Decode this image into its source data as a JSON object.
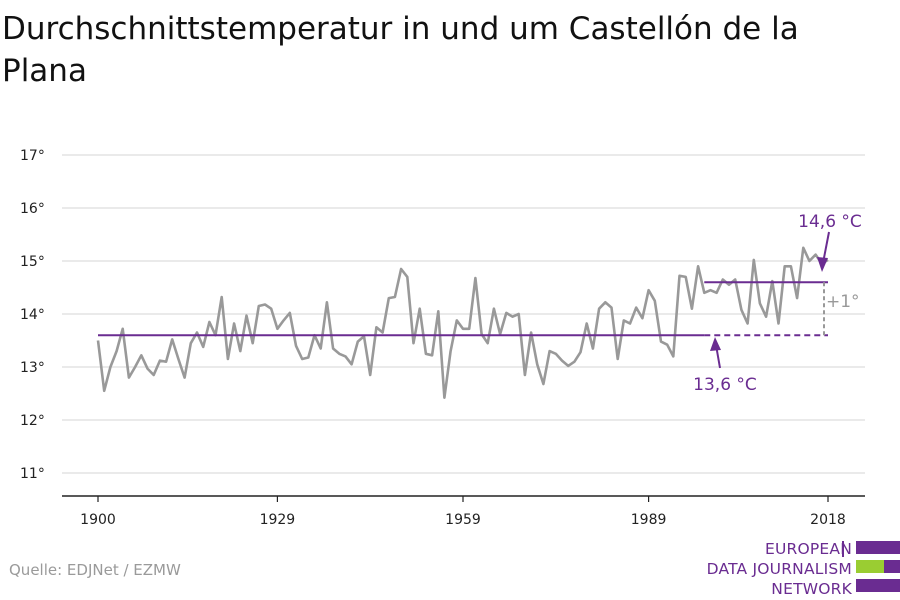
{
  "title": "Durchschnittstemperatur in und um Castellón de la Plana",
  "source": "Quelle: EDJNet / EZMW",
  "logo": {
    "lines": [
      "EUROPEAN",
      "DATA JOURNALISM",
      "NETWORK"
    ],
    "colors": {
      "purple": "#6a2c91",
      "green": "#9acd32"
    }
  },
  "colors": {
    "series": "#999999",
    "average": "#6a2c91",
    "delta": "#999999",
    "grid": "#dddddd"
  },
  "chart_data": {
    "type": "line",
    "title": "Durchschnittstemperatur in und um Castellón de la Plana",
    "xlabel": "",
    "ylabel": "",
    "xlim": [
      1900,
      2018
    ],
    "ylim": [
      11,
      17
    ],
    "yticks": [
      11,
      12,
      13,
      14,
      15,
      16,
      17
    ],
    "ytick_labels": [
      "11°",
      "12°",
      "13°",
      "14°",
      "15°",
      "16°",
      "17°"
    ],
    "xticks": [
      1900,
      1929,
      1959,
      1989,
      2018
    ],
    "xtick_labels": [
      "1900",
      "1929",
      "1959",
      "1989",
      "2018"
    ],
    "grid": true,
    "series": [
      {
        "x": [
          1900,
          1901,
          1902,
          1903,
          1904,
          1905,
          1906,
          1907,
          1908,
          1909,
          1910,
          1911,
          1912,
          1913,
          1914,
          1915,
          1916,
          1917,
          1918,
          1919,
          1920,
          1921,
          1922,
          1923,
          1924,
          1925,
          1926,
          1927,
          1928,
          1929,
          1930,
          1931,
          1932,
          1933,
          1934,
          1935,
          1936,
          1937,
          1938,
          1939,
          1940,
          1941,
          1942,
          1943,
          1944,
          1945,
          1946,
          1947,
          1948,
          1949,
          1950,
          1951,
          1952,
          1953,
          1954,
          1955,
          1956,
          1957,
          1958,
          1959,
          1960,
          1961,
          1962,
          1963,
          1964,
          1965,
          1966,
          1967,
          1968,
          1969,
          1970,
          1971,
          1972,
          1973,
          1974,
          1975,
          1976,
          1977,
          1978,
          1979,
          1980,
          1981,
          1982,
          1983,
          1984,
          1985,
          1986,
          1987,
          1988,
          1989,
          1990,
          1991,
          1992,
          1993,
          1994,
          1995,
          1996,
          1997,
          1998,
          1999,
          2000,
          2001,
          2002,
          2003,
          2004,
          2005,
          2006,
          2007,
          2008,
          2009,
          2010,
          2011,
          2012,
          2013,
          2014,
          2015,
          2016,
          2017,
          2018
        ],
        "values": [
          13.5,
          12.55,
          13.0,
          13.3,
          13.72,
          12.8,
          13.0,
          13.22,
          12.97,
          12.85,
          13.12,
          13.1,
          13.52,
          13.15,
          12.8,
          13.45,
          13.65,
          13.38,
          13.85,
          13.6,
          14.32,
          13.15,
          13.82,
          13.3,
          13.97,
          13.45,
          14.15,
          14.18,
          14.1,
          13.72,
          13.88,
          14.02,
          13.4,
          13.15,
          13.18,
          13.6,
          13.35,
          14.22,
          13.35,
          13.25,
          13.2,
          13.05,
          13.48,
          13.58,
          12.85,
          13.75,
          13.65,
          14.3,
          14.32,
          14.85,
          14.7,
          13.45,
          14.1,
          13.25,
          13.22,
          14.05,
          12.42,
          13.3,
          13.88,
          13.72,
          13.72,
          14.68,
          13.62,
          13.45,
          14.1,
          13.62,
          14.02,
          13.95,
          14.0,
          12.85,
          13.65,
          13.05,
          12.68,
          13.3,
          13.25,
          13.12,
          13.02,
          13.1,
          13.28,
          13.82,
          13.35,
          14.1,
          14.22,
          14.12,
          13.15,
          13.88,
          13.82,
          14.12,
          13.92,
          14.45,
          14.25,
          13.48,
          13.42,
          13.2,
          14.72,
          14.7,
          14.1,
          14.9,
          14.4,
          14.45,
          14.4,
          14.65,
          14.55,
          14.65,
          14.08,
          13.82,
          15.02,
          14.2,
          13.95,
          14.62,
          13.82,
          14.9,
          14.9,
          14.3,
          15.25,
          15.0,
          15.12,
          14.95,
          15.02
        ]
      }
    ],
    "reference_lines": [
      {
        "label": "13,6 °C",
        "value": 13.6,
        "x": [
          1900,
          2018
        ]
      },
      {
        "label": "14,6 °C",
        "value": 14.6,
        "x": [
          1998,
          2018
        ]
      }
    ],
    "annotations": [
      {
        "text": "14,6 °C"
      },
      {
        "text": "13,6 °C"
      },
      {
        "text": "+1°"
      }
    ]
  }
}
